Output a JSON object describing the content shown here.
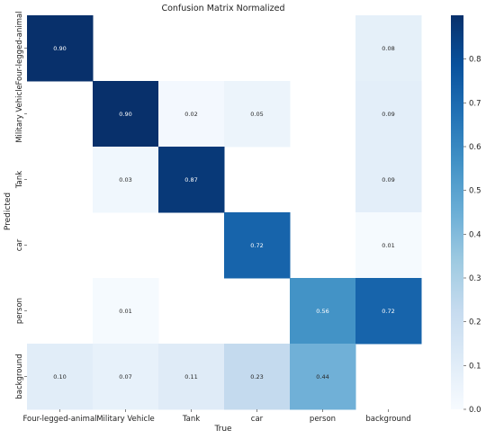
{
  "chart_data": {
    "type": "heatmap",
    "title": "Confusion Matrix Normalized",
    "xlabel": "True",
    "ylabel": "Predicted",
    "x_categories": [
      "Four-legged-animal",
      "Military Vehicle",
      "Tank",
      "car",
      "person",
      "background"
    ],
    "y_categories": [
      "Four-legged-animal",
      "Military Vehicle",
      "Tank",
      "car",
      "person",
      "background"
    ],
    "values": [
      [
        0.9,
        null,
        null,
        null,
        null,
        0.08
      ],
      [
        null,
        0.9,
        0.02,
        0.05,
        null,
        0.09
      ],
      [
        null,
        0.03,
        0.87,
        null,
        null,
        0.09
      ],
      [
        null,
        null,
        null,
        0.72,
        null,
        0.01
      ],
      [
        null,
        0.01,
        null,
        null,
        0.56,
        0.72
      ],
      [
        0.1,
        0.07,
        0.11,
        0.23,
        0.44,
        null
      ]
    ],
    "value_labels": [
      [
        "0.90",
        "",
        "",
        "",
        "",
        "0.08"
      ],
      [
        "",
        "0.90",
        "0.02",
        "0.05",
        "",
        "0.09"
      ],
      [
        "",
        "0.03",
        "0.87",
        "",
        "",
        "0.09"
      ],
      [
        "",
        "",
        "",
        "0.72",
        "",
        "0.01"
      ],
      [
        "",
        "0.01",
        "",
        "",
        "0.56",
        "0.72"
      ],
      [
        "0.10",
        "0.07",
        "0.11",
        "0.23",
        "0.44",
        ""
      ]
    ],
    "colorbar": {
      "range": [
        0.0,
        0.9
      ],
      "ticks": [
        "0.0",
        "0.1",
        "0.2",
        "0.3",
        "0.4",
        "0.5",
        "0.6",
        "0.7",
        "0.8"
      ],
      "colormap": "Blues"
    },
    "grid": false
  }
}
